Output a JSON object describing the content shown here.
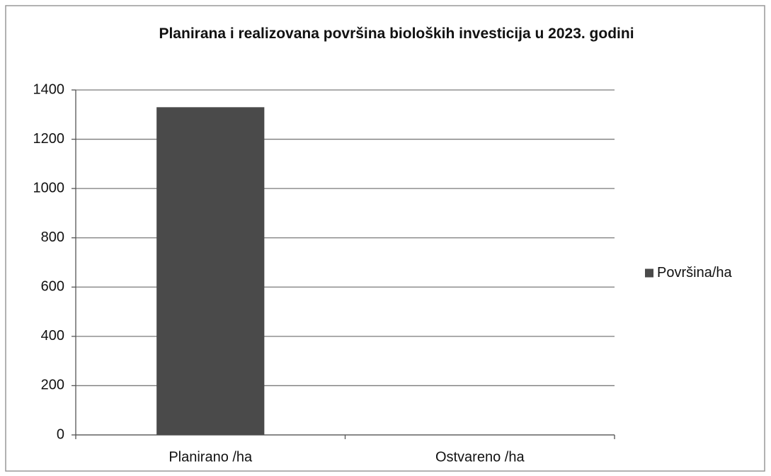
{
  "chart_data": {
    "type": "bar",
    "title": "Planirana i realizovana površina bioloških investicija u 2023. godini",
    "categories": [
      "Planirano /ha",
      "Ostvareno /ha"
    ],
    "series": [
      {
        "name": "Površina/ha",
        "color": "#4a4a4a",
        "values": [
          1330,
          0
        ]
      }
    ],
    "ylim": [
      0,
      1400
    ],
    "yticks": [
      0,
      200,
      400,
      600,
      800,
      1000,
      1200,
      1400
    ],
    "grid": true,
    "legend": "right"
  }
}
